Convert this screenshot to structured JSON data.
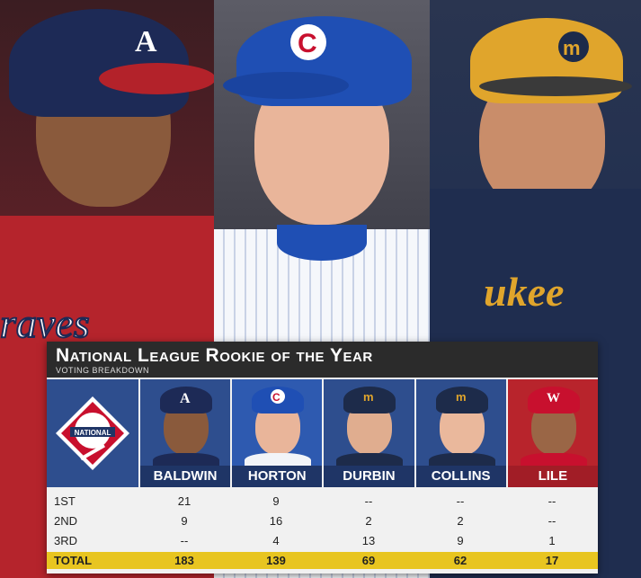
{
  "title": "National League Rookie of the Year",
  "subtitle": "VOTING BREAKDOWN",
  "players": [
    {
      "name": "BALDWIN",
      "team_icon": "braves-a-cap-icon"
    },
    {
      "name": "HORTON",
      "team_icon": "cubs-c-cap-icon"
    },
    {
      "name": "DURBIN",
      "team_icon": "brewers-cap-icon"
    },
    {
      "name": "COLLINS",
      "team_icon": "brewers-cap-icon"
    },
    {
      "name": "LILE",
      "team_icon": "nationals-w-cap-icon"
    }
  ],
  "rows": [
    {
      "label": "1ST",
      "values": [
        "21",
        "9",
        "--",
        "--",
        "--"
      ]
    },
    {
      "label": "2ND",
      "values": [
        "9",
        "16",
        "2",
        "2",
        "--"
      ]
    },
    {
      "label": "3RD",
      "values": [
        "--",
        "4",
        "13",
        "9",
        "1"
      ]
    },
    {
      "label": "TOTAL",
      "values": [
        "183",
        "139",
        "69",
        "62",
        "17"
      ]
    }
  ],
  "logo_text": "NATIONAL",
  "colors": {
    "navy": "#1f3566",
    "red": "#b8242c",
    "gold": "#e8c520"
  }
}
